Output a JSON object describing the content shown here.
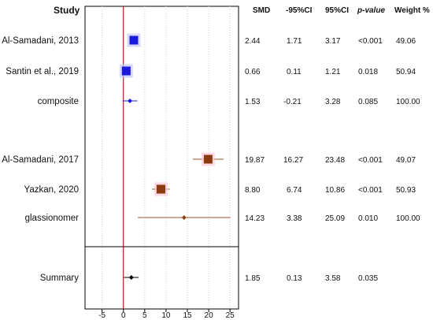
{
  "headers": {
    "study": "Study",
    "smd": "SMD",
    "lower": "-95%CI",
    "upper": "95%CI",
    "p": "p-value",
    "weight": "Weight %"
  },
  "rows": [
    {
      "study": "Al-Samadani, 2013",
      "smd": "2.44",
      "lower": "1.71",
      "upper": "3.17",
      "p": "<0.001",
      "weight": "49.06"
    },
    {
      "study": "Santin et al., 2019",
      "smd": "0.66",
      "lower": "0.11",
      "upper": "1.21",
      "p": "0.018",
      "weight": "50.94"
    },
    {
      "study": "composite",
      "smd": "1.53",
      "lower": "-0.21",
      "upper": "3.28",
      "p": "0.085",
      "weight": "100.00"
    },
    {
      "study": "Al-Samadani, 2017",
      "smd": "19.87",
      "lower": "16.27",
      "upper": "23.48",
      "p": "<0.001",
      "weight": "49.07"
    },
    {
      "study": "Yazkan, 2020",
      "smd": "8.80",
      "lower": "6.74",
      "upper": "10.86",
      "p": "<0.001",
      "weight": "50.93"
    },
    {
      "study": "glassionomer",
      "smd": "14.23",
      "lower": "3.38",
      "upper": "25.09",
      "p": "0.010",
      "weight": "100.00"
    },
    {
      "study": "Summary",
      "smd": "1.85",
      "lower": "0.13",
      "upper": "3.58",
      "p": "0.035",
      "weight": ""
    }
  ],
  "chart_data": {
    "type": "forest",
    "xlim": [
      -9,
      27
    ],
    "xticks": [
      -5,
      0,
      5,
      10,
      15,
      20,
      25
    ],
    "xticklabels": [
      "-5",
      "0",
      "5",
      "10",
      "15",
      "20",
      "25"
    ],
    "reference_line": 0,
    "grid": true,
    "studies": [
      {
        "label": "Al-Samadani, 2013",
        "estimate": 2.44,
        "ci": [
          1.71,
          3.17
        ],
        "weight": 49.06,
        "kind": "study",
        "group": "composite"
      },
      {
        "label": "Santin et al., 2019",
        "estimate": 0.66,
        "ci": [
          0.11,
          1.21
        ],
        "weight": 50.94,
        "kind": "study",
        "group": "composite"
      },
      {
        "label": "composite",
        "estimate": 1.53,
        "ci": [
          -0.21,
          3.28
        ],
        "weight": 100.0,
        "kind": "subtotal",
        "group": "composite"
      },
      {
        "label": "Al-Samadani, 2017",
        "estimate": 19.87,
        "ci": [
          16.27,
          23.48
        ],
        "weight": 49.07,
        "kind": "study",
        "group": "glassionomer"
      },
      {
        "label": "Yazkan, 2020",
        "estimate": 8.8,
        "ci": [
          6.74,
          10.86
        ],
        "weight": 50.93,
        "kind": "study",
        "group": "glassionomer"
      },
      {
        "label": "glassionomer",
        "estimate": 14.23,
        "ci": [
          3.38,
          25.09
        ],
        "weight": 100.0,
        "kind": "subtotal",
        "group": "glassionomer"
      },
      {
        "label": "Summary",
        "estimate": 1.85,
        "ci": [
          0.13,
          3.58
        ],
        "weight": null,
        "kind": "overall",
        "group": "all"
      }
    ],
    "colors": {
      "composite": "#1a1adc",
      "glassionomer_box": "#8b3a0e",
      "glassionomer_line": "#a0522d",
      "glassionomer_diamond": "#8b4513",
      "summary": "#000000",
      "reference_line": "#8b0000",
      "grid": "#d3d3d3",
      "halo_composite": "#c8c8ff",
      "halo_glassionomer": "#ffc8d8"
    }
  }
}
